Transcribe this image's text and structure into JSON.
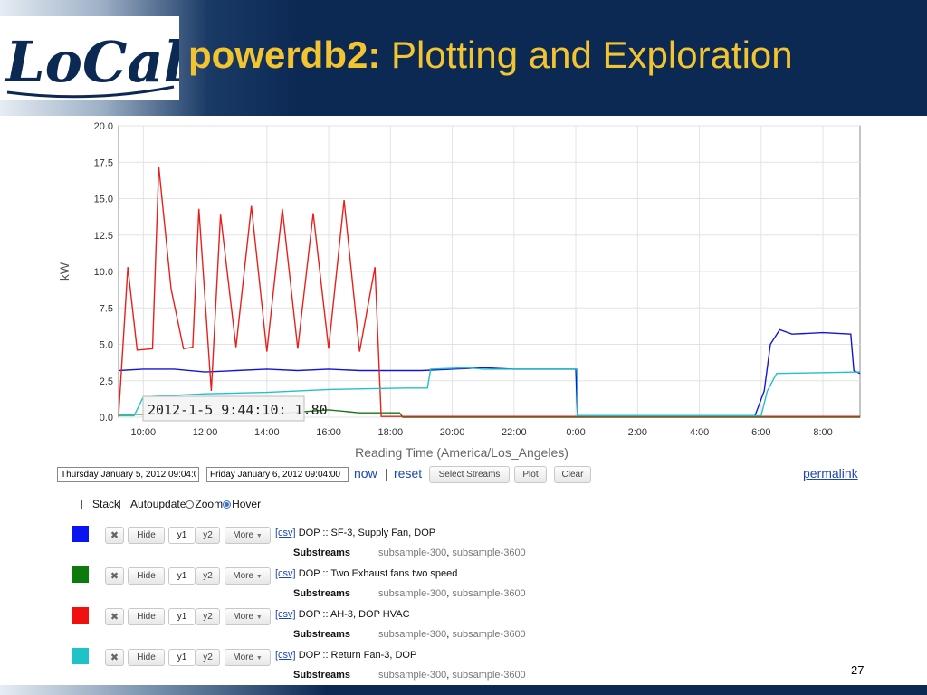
{
  "slide": {
    "title_bold": "powerdb2:",
    "title_rest": " Plotting and Exploration",
    "logo_text": "LoCal",
    "page_number": "27",
    "colors": {
      "navy": "#0c2954",
      "gold": "#f2c430"
    }
  },
  "chart_data": {
    "type": "line",
    "xlabel": "Reading Time (America/Los_Angeles)",
    "ylabel": "kW",
    "x_ticks": [
      "10:00",
      "12:00",
      "14:00",
      "16:00",
      "18:00",
      "20:00",
      "22:00",
      "0:00",
      "2:00",
      "4:00",
      "6:00",
      "8:00"
    ],
    "y_ticks": [
      "0.0",
      "2.5",
      "5.0",
      "7.5",
      "10.0",
      "12.5",
      "15.0",
      "17.5",
      "20.0"
    ],
    "xlim_hours": [
      9.2,
      33.2
    ],
    "ylim": [
      0,
      20
    ],
    "grid": true,
    "tooltip": "2012-1-5 9:44:10: 1.80",
    "series": [
      {
        "color": "#1515d8",
        "points": [
          [
            9.2,
            3.2
          ],
          [
            10,
            3.3
          ],
          [
            11,
            3.3
          ],
          [
            12,
            3.1
          ],
          [
            13,
            3.2
          ],
          [
            14,
            3.3
          ],
          [
            15,
            3.2
          ],
          [
            16,
            3.3
          ],
          [
            17,
            3.2
          ],
          [
            18,
            3.2
          ],
          [
            19,
            3.2
          ],
          [
            20,
            3.3
          ],
          [
            21,
            3.4
          ],
          [
            22,
            3.3
          ],
          [
            23,
            3.3
          ],
          [
            24,
            3.3
          ],
          [
            24.05,
            0.1
          ],
          [
            29.8,
            0.1
          ],
          [
            30.1,
            1.8
          ],
          [
            30.3,
            5.0
          ],
          [
            30.6,
            6.0
          ],
          [
            31,
            5.7
          ],
          [
            32,
            5.8
          ],
          [
            32.9,
            5.7
          ],
          [
            33.0,
            3.2
          ],
          [
            33.2,
            3.0
          ]
        ]
      },
      {
        "color": "#157a15",
        "points": [
          [
            9.2,
            0.2
          ],
          [
            14,
            0.2
          ],
          [
            16,
            0.5
          ],
          [
            17,
            0.3
          ],
          [
            18.3,
            0.3
          ],
          [
            18.4,
            0.0
          ],
          [
            33.2,
            0.0
          ]
        ]
      },
      {
        "color": "#e8201c",
        "points": [
          [
            9.2,
            0.05
          ],
          [
            9.5,
            10.3
          ],
          [
            9.8,
            4.6
          ],
          [
            10.3,
            4.7
          ],
          [
            10.5,
            17.2
          ],
          [
            10.9,
            8.8
          ],
          [
            11.3,
            4.7
          ],
          [
            11.6,
            4.8
          ],
          [
            11.8,
            14.3
          ],
          [
            12.2,
            1.8
          ],
          [
            12.5,
            13.9
          ],
          [
            13,
            4.8
          ],
          [
            13.5,
            14.5
          ],
          [
            14,
            4.5
          ],
          [
            14.5,
            14.3
          ],
          [
            15,
            4.7
          ],
          [
            15.5,
            14.0
          ],
          [
            16,
            4.7
          ],
          [
            16.5,
            14.9
          ],
          [
            17,
            4.5
          ],
          [
            17.5,
            10.3
          ],
          [
            17.7,
            0.05
          ],
          [
            33.2,
            0.05
          ]
        ]
      },
      {
        "color": "#24c0c8",
        "points": [
          [
            9.2,
            0.1
          ],
          [
            9.7,
            0.1
          ],
          [
            10,
            1.4
          ],
          [
            12,
            1.6
          ],
          [
            14,
            1.7
          ],
          [
            16,
            1.9
          ],
          [
            18.5,
            2.0
          ],
          [
            19.2,
            2.0
          ],
          [
            19.3,
            3.3
          ],
          [
            20.5,
            3.4
          ],
          [
            21,
            3.3
          ],
          [
            24.05,
            3.3
          ],
          [
            24.05,
            0.1
          ],
          [
            30,
            0.1
          ],
          [
            30.2,
            1.8
          ],
          [
            30.5,
            3.0
          ],
          [
            33.2,
            3.1
          ]
        ]
      }
    ]
  },
  "controls": {
    "start_date": "Thursday January 5, 2012 09:04:00",
    "end_date": "Friday January 6, 2012 09:04:00",
    "now": "now",
    "separator": "|",
    "reset": "reset",
    "select_streams": "Select Streams",
    "plot": "Plot",
    "clear": "Clear",
    "permalink": "permalink",
    "options": {
      "stack": "Stack",
      "autoupdate": "Autoupdate",
      "zoom": "Zoom",
      "hover": "Hover"
    }
  },
  "streams": [
    {
      "color": "#0a14f0",
      "hide": "Hide",
      "y1": "y1",
      "y2": "y2",
      "more": "More",
      "csv": "[csv]",
      "name": "DOP :: SF-3, Supply Fan, DOP",
      "substreams_label": "Substreams",
      "sub1": "subsample-300",
      "sub2": "subsample-3600"
    },
    {
      "color": "#0c7a0c",
      "hide": "Hide",
      "y1": "y1",
      "y2": "y2",
      "more": "More",
      "csv": "[csv]",
      "name": "DOP :: Two Exhaust fans two speed",
      "substreams_label": "Substreams",
      "sub1": "subsample-300",
      "sub2": "subsample-3600"
    },
    {
      "color": "#f01010",
      "hide": "Hide",
      "y1": "y1",
      "y2": "y2",
      "more": "More",
      "csv": "[csv]",
      "name": "DOP :: AH-3, DOP HVAC",
      "substreams_label": "Substreams",
      "sub1": "subsample-300",
      "sub2": "subsample-3600"
    },
    {
      "color": "#1cc4c8",
      "hide": "Hide",
      "y1": "y1",
      "y2": "y2",
      "more": "More",
      "csv": "[csv]",
      "name": "DOP :: Return Fan-3, DOP",
      "substreams_label": "Substreams",
      "sub1": "subsample-300",
      "sub2": "subsample-3600"
    }
  ]
}
